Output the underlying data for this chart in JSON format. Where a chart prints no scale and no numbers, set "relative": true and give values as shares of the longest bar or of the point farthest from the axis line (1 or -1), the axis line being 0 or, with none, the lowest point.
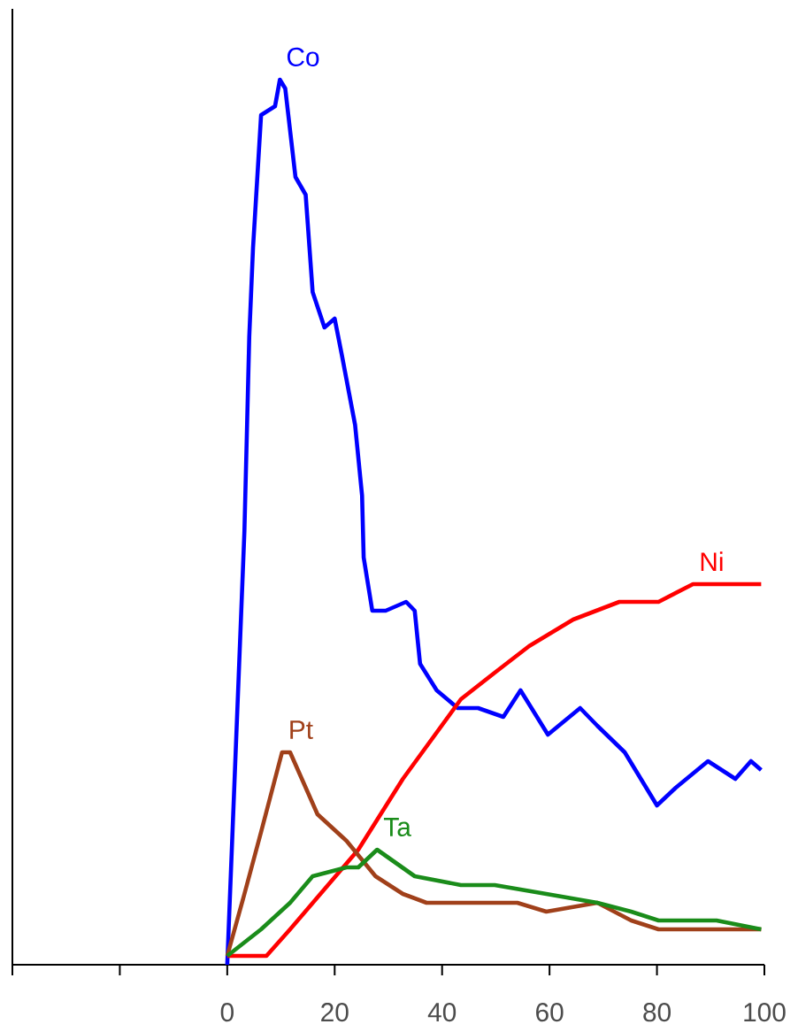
{
  "chart_data": {
    "type": "line",
    "relative": true,
    "xlim": [
      -40,
      100
    ],
    "xticks": [
      {
        "value": -40,
        "label": null
      },
      {
        "value": -20,
        "label": null
      },
      0,
      20,
      40,
      60,
      80,
      100
    ],
    "marker": "none",
    "line_style": "solid",
    "series": [
      {
        "name": "Co",
        "color": "#0000ff",
        "x": [
          0,
          3.2,
          4.1,
          4.8,
          6.3,
          8.9,
          9.8,
          10.8,
          12.7,
          14.6,
          15.9,
          18.1,
          20.0,
          21.3,
          23.8,
          25.1,
          25.4,
          27.0,
          29.5,
          33.3,
          34.9,
          35.9,
          39.0,
          42.9,
          46.7,
          51.4,
          54.6,
          59.7,
          65.7,
          68.9,
          74.0,
          80.0,
          83.5,
          89.5,
          94.6,
          97.5,
          99.4
        ],
        "values": [
          0,
          0.49,
          0.71,
          0.81,
          0.96,
          0.97,
          1.0,
          0.99,
          0.89,
          0.87,
          0.76,
          0.72,
          0.73,
          0.69,
          0.61,
          0.53,
          0.46,
          0.4,
          0.4,
          0.41,
          0.4,
          0.34,
          0.31,
          0.29,
          0.29,
          0.28,
          0.31,
          0.26,
          0.29,
          0.27,
          0.24,
          0.18,
          0.2,
          0.23,
          0.21,
          0.23,
          0.22
        ]
      },
      {
        "name": "Ni",
        "color": "#ff0000",
        "x": [
          0,
          7.3,
          11.7,
          24.4,
          32.7,
          43.5,
          49.8,
          56.2,
          64.4,
          73.0,
          80.3,
          86.7,
          99.4
        ],
        "values": [
          0.01,
          0.01,
          0.04,
          0.13,
          0.21,
          0.3,
          0.33,
          0.36,
          0.39,
          0.41,
          0.41,
          0.43,
          0.43
        ]
      },
      {
        "name": "Pt",
        "color": "#a0401a",
        "x": [
          0,
          3.2,
          6.3,
          10.2,
          11.7,
          16.8,
          22.2,
          27.6,
          32.7,
          37.1,
          43.5,
          54.0,
          59.4,
          68.9,
          75.2,
          80.3,
          96.2,
          99.4
        ],
        "values": [
          0.01,
          0.08,
          0.15,
          0.24,
          0.24,
          0.17,
          0.14,
          0.1,
          0.08,
          0.07,
          0.07,
          0.07,
          0.06,
          0.07,
          0.05,
          0.04,
          0.04,
          0.04
        ]
      },
      {
        "name": "Ta",
        "color": "#1a8c1a",
        "x": [
          0,
          6.3,
          11.7,
          15.9,
          22.2,
          24.4,
          27.9,
          34.9,
          43.5,
          49.8,
          59.4,
          68.9,
          75.2,
          80.3,
          91.1,
          99.4
        ],
        "values": [
          0.01,
          0.04,
          0.07,
          0.1,
          0.11,
          0.11,
          0.13,
          0.1,
          0.09,
          0.09,
          0.08,
          0.07,
          0.06,
          0.05,
          0.05,
          0.04
        ]
      }
    ]
  }
}
